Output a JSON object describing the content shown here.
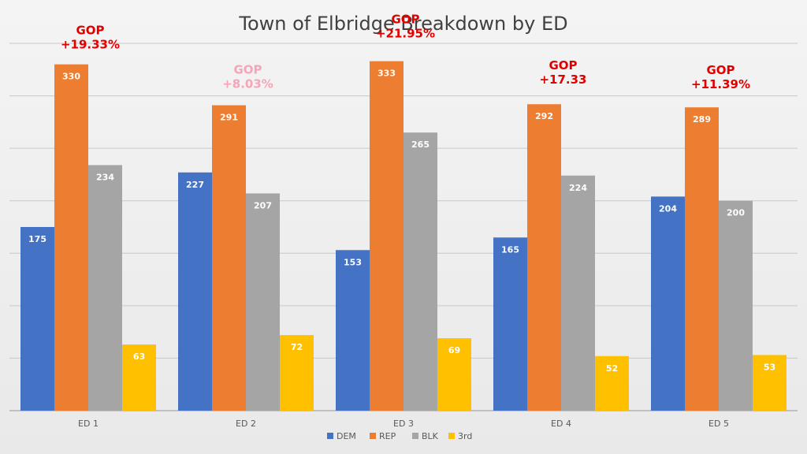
{
  "chart_data": {
    "type": "bar",
    "title": "Town of Elbridge Breakdown by ED",
    "categories": [
      "ED 1",
      "ED 2",
      "ED 3",
      "ED 4",
      "ED 5"
    ],
    "series": [
      {
        "name": "DEM",
        "color": "#4472C4",
        "values": [
          175,
          227,
          153,
          165,
          204
        ]
      },
      {
        "name": "REP",
        "color": "#ED7D31",
        "values": [
          330,
          291,
          333,
          292,
          289
        ]
      },
      {
        "name": "BLK",
        "color": "#A5A5A5",
        "values": [
          234,
          207,
          265,
          224,
          200
        ]
      },
      {
        "name": "3rd",
        "color": "#FFC000",
        "values": [
          63,
          72,
          69,
          52,
          53
        ]
      }
    ],
    "ylim": [
      0,
      350
    ],
    "grid": true,
    "legend": "bottom",
    "annotations": [
      {
        "category": "ED 1",
        "line1": "GOP",
        "line2": "+19.33%",
        "color": "#E00000"
      },
      {
        "category": "ED 2",
        "line1": "GOP",
        "line2": "+8.03%",
        "color": "#F4A6B8"
      },
      {
        "category": "ED 3",
        "line1": "GOP",
        "line2": "+21.95%",
        "color": "#E00000"
      },
      {
        "category": "ED 4",
        "line1": "GOP",
        "line2": "+17.33",
        "color": "#E00000"
      },
      {
        "category": "ED 5",
        "line1": "GOP",
        "line2": "+11.39%",
        "color": "#E00000"
      }
    ]
  }
}
